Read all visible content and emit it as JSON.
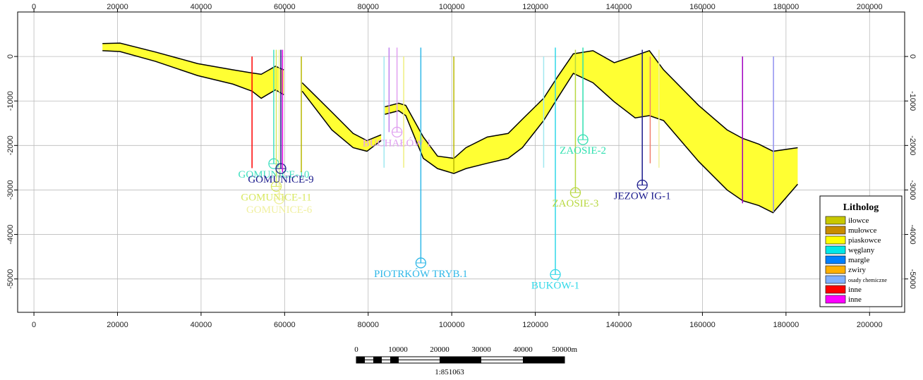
{
  "chart_data": {
    "type": "cross-section",
    "xlim": [
      -3900,
      208400
    ],
    "ylim": [
      -5750,
      1000
    ],
    "xticks": [
      0,
      20000,
      40000,
      60000,
      80000,
      100000,
      120000,
      140000,
      160000,
      180000,
      200000
    ],
    "yticks": [
      0,
      -1000,
      -2000,
      -3000,
      -4000,
      -5000
    ],
    "grid": true,
    "horizons": {
      "color": "#ffff33",
      "x": [
        16400,
        20600,
        29100,
        39200,
        47600,
        52200,
        54400,
        57800,
        59800,
        62000,
        64200,
        71300,
        76400,
        79700,
        83100,
        83500,
        84000,
        87300,
        89000,
        93200,
        96600,
        100500,
        103400,
        108500,
        113500,
        116900,
        122000,
        125300,
        129100,
        133800,
        138900,
        143900,
        147300,
        150700,
        159100,
        165900,
        169600,
        173500,
        176900,
        182800
      ],
      "top": [
        290,
        300,
        100,
        -160,
        -300,
        -370,
        -400,
        -220,
        -300,
        null,
        -590,
        -1250,
        -1730,
        -1890,
        -1760,
        null,
        -1130,
        -1050,
        -1100,
        -1810,
        -2240,
        -2290,
        -2050,
        -1810,
        -1730,
        -1410,
        -940,
        -460,
        60,
        130,
        -140,
        20,
        130,
        -300,
        -1100,
        -1650,
        -1840,
        -1970,
        -2130,
        -2050
      ],
      "base": [
        130,
        110,
        -110,
        -430,
        -620,
        -780,
        -940,
        -750,
        -860,
        null,
        -780,
        -1650,
        -2050,
        -2130,
        -1890,
        null,
        -1300,
        -1220,
        -1330,
        -2290,
        -2520,
        -2630,
        -2520,
        -2400,
        -2290,
        -2050,
        -1440,
        -940,
        -380,
        -590,
        -1020,
        -1380,
        -1330,
        -1440,
        -2360,
        -3000,
        -3240,
        -3350,
        -3510,
        -2870
      ]
    },
    "wells": [
      {
        "x": 52200,
        "top": 0,
        "depth": -2510,
        "color": "#ff0000"
      },
      {
        "label": "GOMUNICE-10",
        "x": 57400,
        "top": 150,
        "depth": -2410,
        "color": "#40e0c0"
      },
      {
        "label": "GOMUNICE-11",
        "x": 58000,
        "top": 150,
        "depth": -2920,
        "color": "#d8e860"
      },
      {
        "label": "GOMUNICE-6",
        "x": 58700,
        "top": 150,
        "depth": -3200,
        "color": "#f0f0a0"
      },
      {
        "label": "GOMUNICE-9",
        "x": 59100,
        "top": 150,
        "depth": -2520,
        "color": "#1a1a8c"
      },
      {
        "x": 59500,
        "top": 150,
        "depth": -2600,
        "color": "#e000e0"
      },
      {
        "x": 64000,
        "top": 0,
        "depth": -2600,
        "color": "#b8b800"
      },
      {
        "x": 83800,
        "top": 0,
        "depth": -2500,
        "color": "#a0e8f0"
      },
      {
        "x": 85000,
        "top": 200,
        "depth": -1700,
        "color": "#c080f0"
      },
      {
        "label": "BUCHAŁÓW 1",
        "x": 86900,
        "top": 200,
        "depth": -1700,
        "color": "#e0a0f0"
      },
      {
        "x": 88500,
        "top": 0,
        "depth": -2500,
        "color": "#f0f080"
      },
      {
        "label": "PIOTRKÓW TRYB.1",
        "x": 92600,
        "top": 200,
        "depth": -4640,
        "color": "#30b8e8"
      },
      {
        "x": 100500,
        "top": 0,
        "depth": -2600,
        "color": "#b8b800"
      },
      {
        "x": 122000,
        "top": 0,
        "depth": -2500,
        "color": "#a0e8f0"
      },
      {
        "label": "BUKÓW-1",
        "x": 124800,
        "top": 200,
        "depth": -4900,
        "color": "#30d8e8"
      },
      {
        "label": "ZAOSIE-3",
        "x": 129600,
        "top": 150,
        "depth": -3060,
        "color": "#b8d840"
      },
      {
        "label": "ZAOSIE-2",
        "x": 131400,
        "top": 200,
        "depth": -1870,
        "color": "#30e0b0"
      },
      {
        "label": "JEZOW IG-1",
        "x": 145600,
        "top": 150,
        "depth": -2890,
        "color": "#1a1a8c"
      },
      {
        "x": 147500,
        "top": 0,
        "depth": -2400,
        "color": "#f08070"
      },
      {
        "x": 149600,
        "top": 150,
        "depth": -2500,
        "color": "#f0f0a0"
      },
      {
        "x": 169600,
        "top": 0,
        "depth": -3300,
        "color": "#a000c0"
      },
      {
        "x": 177000,
        "top": 0,
        "depth": -3500,
        "color": "#9090f0"
      }
    ],
    "legend": {
      "title": "Litholog",
      "items": [
        {
          "label": "iłowce",
          "color": "#c8c800"
        },
        {
          "label": "mułowce",
          "color": "#c88c00"
        },
        {
          "label": "piaskowce",
          "color": "#ffff00"
        },
        {
          "label": "węglany",
          "color": "#00e8e8"
        },
        {
          "label": "margle",
          "color": "#0080ff"
        },
        {
          "label": "zwiry",
          "color": "#ffb000"
        },
        {
          "label": "osady chemiczne",
          "color": "#80b0ff"
        },
        {
          "label": "inne",
          "color": "#ff0000"
        },
        {
          "label": "inne",
          "color": "#ff00ff"
        }
      ]
    },
    "scale_bar": {
      "labels": [
        "0",
        "10000",
        "20000",
        "30000",
        "40000",
        "50000m"
      ],
      "ratio": "1:851063"
    }
  }
}
